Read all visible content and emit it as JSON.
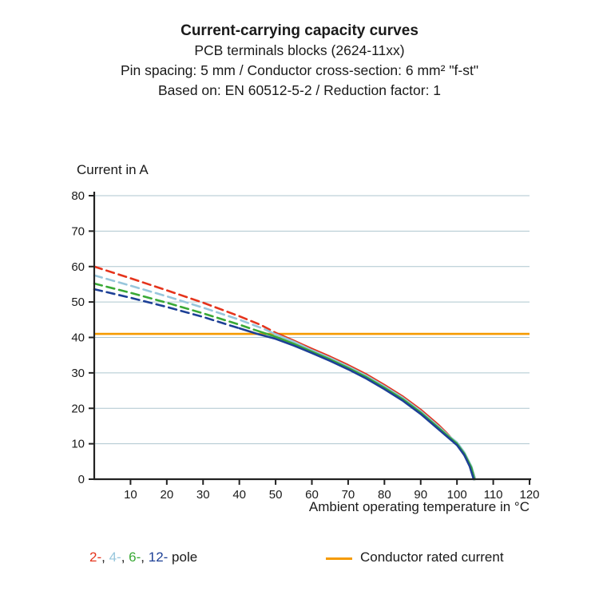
{
  "header": {
    "title": "Current-carrying capacity curves",
    "subtitle1": "PCB terminals blocks (2624-11xx)",
    "subtitle2": "Pin spacing: 5 mm / Conductor cross-section: 6 mm² \"f-st\"",
    "subtitle3": "Based on: EN 60512-5-2 / Reduction factor: 1"
  },
  "chart_data": {
    "type": "line",
    "title": "Current-carrying capacity curves",
    "ylabel": "Current in A",
    "xlabel": "Ambient operating temperature in °C",
    "xlim": [
      0,
      120
    ],
    "ylim": [
      0,
      80
    ],
    "xticks": [
      10,
      20,
      30,
      40,
      50,
      60,
      70,
      80,
      90,
      100,
      110,
      120
    ],
    "yticks": [
      0,
      10,
      20,
      30,
      40,
      50,
      60,
      70,
      80
    ],
    "grid": "horizontal",
    "axis_color": "#222222",
    "grid_color": "#aec6cf",
    "rated_current": {
      "value": 41,
      "color": "#f59a00",
      "label": "Conductor rated current"
    },
    "series": [
      {
        "name": "2-pole",
        "color": "#e5341c",
        "dashed": [
          [
            0,
            60
          ],
          [
            10,
            56.7
          ],
          [
            20,
            53.3
          ],
          [
            30,
            49.8
          ],
          [
            40,
            46
          ],
          [
            46,
            43.5
          ],
          [
            50,
            41.3
          ]
        ],
        "solid": [
          [
            50,
            41.3
          ],
          [
            55,
            39.1
          ],
          [
            60,
            36.8
          ],
          [
            65,
            34.6
          ],
          [
            70,
            32.2
          ],
          [
            75,
            29.6
          ],
          [
            80,
            26.6
          ],
          [
            85,
            23.4
          ],
          [
            90,
            19.6
          ],
          [
            93,
            17.0
          ],
          [
            95,
            15.2
          ],
          [
            97,
            13.2
          ],
          [
            99,
            11.0
          ],
          [
            101,
            8.4
          ],
          [
            103,
            5.2
          ],
          [
            104.5,
            1.8
          ],
          [
            105,
            0
          ]
        ]
      },
      {
        "name": "4-pole",
        "color": "#97c6dc",
        "dashed": [
          [
            0,
            57.5
          ],
          [
            10,
            54.6
          ],
          [
            20,
            51.6
          ],
          [
            30,
            48.4
          ],
          [
            40,
            45.0
          ],
          [
            47,
            42.3
          ]
        ],
        "solid": [
          [
            47,
            42.3
          ],
          [
            50,
            40.9
          ],
          [
            55,
            38.8
          ],
          [
            60,
            36.4
          ],
          [
            65,
            34.2
          ],
          [
            70,
            31.8
          ],
          [
            75,
            29.2
          ],
          [
            80,
            26.2
          ],
          [
            85,
            23.0
          ],
          [
            90,
            19.2
          ],
          [
            95,
            14.8
          ],
          [
            98,
            12.0
          ],
          [
            100,
            10.4
          ],
          [
            102,
            7.6
          ],
          [
            104,
            3.6
          ],
          [
            105,
            0
          ]
        ]
      },
      {
        "name": "6-pole",
        "color": "#39a935",
        "dashed": [
          [
            0,
            55.2
          ],
          [
            10,
            52.6
          ],
          [
            20,
            49.8
          ],
          [
            30,
            46.8
          ],
          [
            40,
            43.6
          ],
          [
            44,
            42.2
          ]
        ],
        "solid": [
          [
            44,
            42.2
          ],
          [
            50,
            40.2
          ],
          [
            55,
            38.2
          ],
          [
            60,
            36.0
          ],
          [
            65,
            33.8
          ],
          [
            70,
            31.4
          ],
          [
            75,
            28.8
          ],
          [
            80,
            25.8
          ],
          [
            85,
            22.6
          ],
          [
            90,
            18.8
          ],
          [
            95,
            14.4
          ],
          [
            100,
            10.0
          ],
          [
            102,
            7.2
          ],
          [
            104,
            3.2
          ],
          [
            104.8,
            0
          ]
        ]
      },
      {
        "name": "12-pole",
        "color": "#1d4096",
        "dashed": [
          [
            0,
            53.6
          ],
          [
            10,
            51.2
          ],
          [
            20,
            48.6
          ],
          [
            30,
            45.8
          ],
          [
            38,
            43.2
          ],
          [
            40,
            42.6
          ]
        ],
        "solid": [
          [
            40,
            42.6
          ],
          [
            45,
            41.0
          ],
          [
            50,
            39.6
          ],
          [
            55,
            37.7
          ],
          [
            60,
            35.6
          ],
          [
            65,
            33.4
          ],
          [
            70,
            31.0
          ],
          [
            75,
            28.4
          ],
          [
            80,
            25.4
          ],
          [
            85,
            22.2
          ],
          [
            90,
            18.4
          ],
          [
            95,
            14.0
          ],
          [
            100,
            9.6
          ],
          [
            102,
            6.8
          ],
          [
            103.5,
            3.6
          ],
          [
            104.6,
            0
          ]
        ]
      }
    ]
  },
  "legend": {
    "pole_items": [
      {
        "label": "2-",
        "color": "#e5341c"
      },
      {
        "label": "4-",
        "color": "#97c6dc"
      },
      {
        "label": "6-",
        "color": "#39a935"
      },
      {
        "label": "12-",
        "color": "#1d4096"
      }
    ],
    "separator": ", ",
    "suffix": " pole",
    "rated_label": "Conductor rated current",
    "rated_color": "#f59a00"
  }
}
